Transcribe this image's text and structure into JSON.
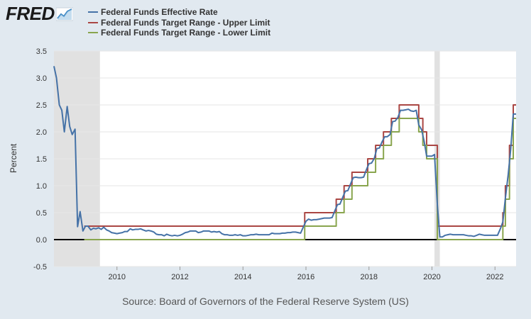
{
  "logo": {
    "text": "FRED",
    "icon": "trend-line-icon"
  },
  "source": "Source: Board of Governors of the Federal Reserve System (US)",
  "chart_data": {
    "type": "line",
    "title": "",
    "xlabel": "",
    "ylabel": "Percent",
    "xlim": [
      2008.0,
      2022.67
    ],
    "ylim": [
      -0.5,
      3.5
    ],
    "yticks": [
      "-0.5",
      "0.0",
      "0.5",
      "1.0",
      "1.5",
      "2.0",
      "2.5",
      "3.0",
      "3.5"
    ],
    "xticks": [
      "2010",
      "2012",
      "2014",
      "2016",
      "2018",
      "2020",
      "2022"
    ],
    "grid": true,
    "legend_position": "top-left",
    "recessions": [
      [
        2008.0,
        2009.46
      ],
      [
        2020.08,
        2020.25
      ]
    ],
    "series": [
      {
        "name": "Federal Funds Effective Rate",
        "color": "#4572a7",
        "step": false,
        "points": [
          [
            2008.0,
            3.22
          ],
          [
            2008.08,
            3.0
          ],
          [
            2008.17,
            2.5
          ],
          [
            2008.25,
            2.4
          ],
          [
            2008.33,
            2.0
          ],
          [
            2008.42,
            2.47
          ],
          [
            2008.5,
            2.1
          ],
          [
            2008.58,
            1.95
          ],
          [
            2008.67,
            2.05
          ],
          [
            2008.75,
            0.24
          ],
          [
            2008.83,
            0.52
          ],
          [
            2008.92,
            0.16
          ],
          [
            2009.0,
            0.25
          ],
          [
            2009.08,
            0.25
          ],
          [
            2009.17,
            0.18
          ],
          [
            2009.25,
            0.21
          ],
          [
            2009.33,
            0.2
          ],
          [
            2009.42,
            0.22
          ],
          [
            2009.5,
            0.19
          ],
          [
            2009.58,
            0.23
          ],
          [
            2009.67,
            0.18
          ],
          [
            2009.75,
            0.16
          ],
          [
            2009.83,
            0.13
          ],
          [
            2009.92,
            0.12
          ],
          [
            2010.0,
            0.11
          ],
          [
            2010.08,
            0.12
          ],
          [
            2010.17,
            0.13
          ],
          [
            2010.25,
            0.15
          ],
          [
            2010.33,
            0.15
          ],
          [
            2010.42,
            0.2
          ],
          [
            2010.5,
            0.18
          ],
          [
            2010.58,
            0.19
          ],
          [
            2010.67,
            0.19
          ],
          [
            2010.75,
            0.2
          ],
          [
            2010.83,
            0.18
          ],
          [
            2010.92,
            0.16
          ],
          [
            2011.0,
            0.17
          ],
          [
            2011.08,
            0.16
          ],
          [
            2011.17,
            0.14
          ],
          [
            2011.25,
            0.1
          ],
          [
            2011.33,
            0.09
          ],
          [
            2011.42,
            0.09
          ],
          [
            2011.5,
            0.07
          ],
          [
            2011.58,
            0.1
          ],
          [
            2011.67,
            0.08
          ],
          [
            2011.75,
            0.07
          ],
          [
            2011.83,
            0.08
          ],
          [
            2011.92,
            0.07
          ],
          [
            2012.0,
            0.08
          ],
          [
            2012.08,
            0.1
          ],
          [
            2012.17,
            0.13
          ],
          [
            2012.25,
            0.14
          ],
          [
            2012.33,
            0.16
          ],
          [
            2012.42,
            0.16
          ],
          [
            2012.5,
            0.16
          ],
          [
            2012.58,
            0.13
          ],
          [
            2012.67,
            0.14
          ],
          [
            2012.75,
            0.16
          ],
          [
            2012.83,
            0.16
          ],
          [
            2012.92,
            0.16
          ],
          [
            2013.0,
            0.14
          ],
          [
            2013.08,
            0.15
          ],
          [
            2013.17,
            0.14
          ],
          [
            2013.25,
            0.15
          ],
          [
            2013.33,
            0.11
          ],
          [
            2013.42,
            0.09
          ],
          [
            2013.5,
            0.09
          ],
          [
            2013.58,
            0.08
          ],
          [
            2013.67,
            0.08
          ],
          [
            2013.75,
            0.09
          ],
          [
            2013.83,
            0.08
          ],
          [
            2013.92,
            0.09
          ],
          [
            2014.0,
            0.07
          ],
          [
            2014.08,
            0.07
          ],
          [
            2014.17,
            0.08
          ],
          [
            2014.25,
            0.09
          ],
          [
            2014.33,
            0.09
          ],
          [
            2014.42,
            0.1
          ],
          [
            2014.5,
            0.09
          ],
          [
            2014.58,
            0.09
          ],
          [
            2014.67,
            0.09
          ],
          [
            2014.75,
            0.09
          ],
          [
            2014.83,
            0.09
          ],
          [
            2014.92,
            0.12
          ],
          [
            2015.0,
            0.11
          ],
          [
            2015.08,
            0.11
          ],
          [
            2015.17,
            0.11
          ],
          [
            2015.25,
            0.12
          ],
          [
            2015.33,
            0.12
          ],
          [
            2015.42,
            0.13
          ],
          [
            2015.5,
            0.13
          ],
          [
            2015.58,
            0.14
          ],
          [
            2015.67,
            0.14
          ],
          [
            2015.75,
            0.13
          ],
          [
            2015.83,
            0.12
          ],
          [
            2015.92,
            0.24
          ],
          [
            2016.0,
            0.34
          ],
          [
            2016.08,
            0.38
          ],
          [
            2016.17,
            0.36
          ],
          [
            2016.25,
            0.37
          ],
          [
            2016.33,
            0.37
          ],
          [
            2016.42,
            0.38
          ],
          [
            2016.5,
            0.39
          ],
          [
            2016.58,
            0.4
          ],
          [
            2016.67,
            0.4
          ],
          [
            2016.75,
            0.4
          ],
          [
            2016.83,
            0.41
          ],
          [
            2016.92,
            0.54
          ],
          [
            2017.0,
            0.65
          ],
          [
            2017.08,
            0.66
          ],
          [
            2017.17,
            0.79
          ],
          [
            2017.25,
            0.9
          ],
          [
            2017.33,
            0.91
          ],
          [
            2017.42,
            1.04
          ],
          [
            2017.5,
            1.15
          ],
          [
            2017.58,
            1.16
          ],
          [
            2017.67,
            1.15
          ],
          [
            2017.75,
            1.15
          ],
          [
            2017.83,
            1.16
          ],
          [
            2017.92,
            1.3
          ],
          [
            2018.0,
            1.41
          ],
          [
            2018.08,
            1.42
          ],
          [
            2018.17,
            1.51
          ],
          [
            2018.25,
            1.69
          ],
          [
            2018.33,
            1.7
          ],
          [
            2018.42,
            1.82
          ],
          [
            2018.5,
            1.91
          ],
          [
            2018.58,
            1.91
          ],
          [
            2018.67,
            1.95
          ],
          [
            2018.75,
            2.19
          ],
          [
            2018.83,
            2.2
          ],
          [
            2018.92,
            2.27
          ],
          [
            2019.0,
            2.4
          ],
          [
            2019.08,
            2.4
          ],
          [
            2019.17,
            2.41
          ],
          [
            2019.25,
            2.42
          ],
          [
            2019.33,
            2.39
          ],
          [
            2019.42,
            2.38
          ],
          [
            2019.5,
            2.4
          ],
          [
            2019.58,
            2.13
          ],
          [
            2019.67,
            2.04
          ],
          [
            2019.75,
            1.83
          ],
          [
            2019.83,
            1.55
          ],
          [
            2019.92,
            1.55
          ],
          [
            2020.0,
            1.55
          ],
          [
            2020.08,
            1.58
          ],
          [
            2020.17,
            0.65
          ],
          [
            2020.25,
            0.05
          ],
          [
            2020.33,
            0.05
          ],
          [
            2020.42,
            0.08
          ],
          [
            2020.5,
            0.09
          ],
          [
            2020.58,
            0.1
          ],
          [
            2020.67,
            0.09
          ],
          [
            2020.75,
            0.09
          ],
          [
            2020.83,
            0.09
          ],
          [
            2020.92,
            0.09
          ],
          [
            2021.0,
            0.09
          ],
          [
            2021.08,
            0.08
          ],
          [
            2021.17,
            0.07
          ],
          [
            2021.25,
            0.07
          ],
          [
            2021.33,
            0.06
          ],
          [
            2021.42,
            0.08
          ],
          [
            2021.5,
            0.1
          ],
          [
            2021.58,
            0.09
          ],
          [
            2021.67,
            0.08
          ],
          [
            2021.75,
            0.08
          ],
          [
            2021.83,
            0.08
          ],
          [
            2021.92,
            0.08
          ],
          [
            2022.0,
            0.08
          ],
          [
            2022.08,
            0.08
          ],
          [
            2022.17,
            0.2
          ],
          [
            2022.25,
            0.33
          ],
          [
            2022.33,
            0.77
          ],
          [
            2022.42,
            1.21
          ],
          [
            2022.5,
            1.68
          ],
          [
            2022.58,
            2.33
          ],
          [
            2022.67,
            2.33
          ]
        ]
      },
      {
        "name": "Federal Funds Target Range - Upper Limit",
        "color": "#aa4643",
        "step": true,
        "points": [
          [
            2008.96,
            0.25
          ],
          [
            2015.96,
            0.5
          ],
          [
            2016.96,
            0.75
          ],
          [
            2017.21,
            1.0
          ],
          [
            2017.46,
            1.25
          ],
          [
            2017.96,
            1.5
          ],
          [
            2018.21,
            1.75
          ],
          [
            2018.46,
            2.0
          ],
          [
            2018.71,
            2.25
          ],
          [
            2018.96,
            2.5
          ],
          [
            2019.58,
            2.25
          ],
          [
            2019.71,
            2.0
          ],
          [
            2019.83,
            1.75
          ],
          [
            2020.17,
            0.25
          ],
          [
            2022.25,
            0.5
          ],
          [
            2022.33,
            1.0
          ],
          [
            2022.46,
            1.75
          ],
          [
            2022.58,
            2.5
          ],
          [
            2022.67,
            2.5
          ]
        ]
      },
      {
        "name": "Federal Funds Target Range - Lower Limit",
        "color": "#89a54e",
        "step": true,
        "points": [
          [
            2008.96,
            0.0
          ],
          [
            2015.96,
            0.25
          ],
          [
            2016.96,
            0.5
          ],
          [
            2017.21,
            0.75
          ],
          [
            2017.46,
            1.0
          ],
          [
            2017.96,
            1.25
          ],
          [
            2018.21,
            1.5
          ],
          [
            2018.46,
            1.75
          ],
          [
            2018.71,
            2.0
          ],
          [
            2018.96,
            2.25
          ],
          [
            2019.58,
            2.0
          ],
          [
            2019.71,
            1.75
          ],
          [
            2019.83,
            1.5
          ],
          [
            2020.17,
            0.0
          ],
          [
            2022.25,
            0.25
          ],
          [
            2022.33,
            0.75
          ],
          [
            2022.46,
            1.5
          ],
          [
            2022.58,
            2.25
          ],
          [
            2022.67,
            2.25
          ]
        ]
      }
    ]
  }
}
